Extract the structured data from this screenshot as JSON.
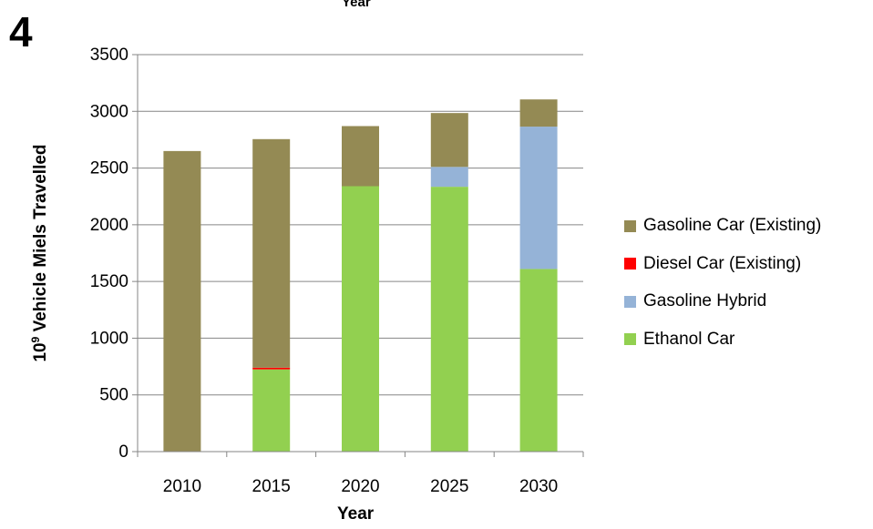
{
  "panel_label": "4",
  "chart_data": {
    "type": "bar",
    "stacked": true,
    "title": "Year",
    "xlabel": "Year",
    "ylabel_prefix": "10",
    "ylabel_sup": "9",
    "ylabel_suffix": " Vehicle Miels Travelled",
    "categories": [
      "2010",
      "2015",
      "2020",
      "2025",
      "2030"
    ],
    "ylim": [
      0,
      3500
    ],
    "yticks": [
      0,
      500,
      1000,
      1500,
      2000,
      2500,
      3000,
      3500
    ],
    "grid": true,
    "legend_position": "right",
    "series": [
      {
        "name": "Ethanol Car",
        "color": "#92d050",
        "values": [
          0,
          725,
          2340,
          2335,
          1610
        ]
      },
      {
        "name": "Gasoline Hybrid",
        "color": "#95b3d7",
        "values": [
          0,
          0,
          0,
          175,
          1255
        ]
      },
      {
        "name": "Diesel Car (Existing)",
        "color": "#ff0000",
        "values": [
          0,
          15,
          0,
          0,
          0
        ]
      },
      {
        "name": "Gasoline Car (Existing)",
        "color": "#948a54",
        "values": [
          2650,
          2015,
          530,
          475,
          240
        ]
      }
    ],
    "legend_order": [
      3,
      2,
      1,
      0
    ]
  }
}
